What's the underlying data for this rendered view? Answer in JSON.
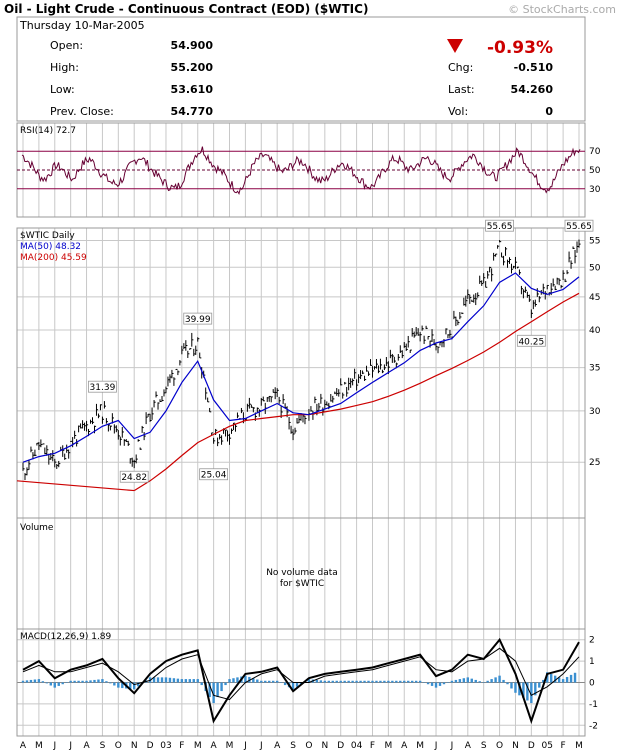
{
  "header": {
    "title": "Oil - Light Crude - Continuous Contract (EOD) ($WTIC)",
    "watermark": "© StockCharts.com",
    "date": "Thursday  10-Mar-2005"
  },
  "quote": {
    "open_label": "Open:",
    "open": "54.900",
    "high_label": "High:",
    "high": "55.200",
    "low_label": "Low:",
    "low": "53.610",
    "prev_label": "Prev. Close:",
    "prev": "54.770",
    "pct_change": "-0.93%",
    "chg_label": "Chg:",
    "chg": "-0.510",
    "last_label": "Last:",
    "last": "54.260",
    "vol_label": "Vol:",
    "vol": "0"
  },
  "colors": {
    "price": "#000000",
    "ma50": "#0000cc",
    "ma200": "#cc0000",
    "rsi": "#660033",
    "macd_hist": "#3a8fd0",
    "down": "#cc0000",
    "grid": "#c8c8c8"
  },
  "panels": {
    "rsi_label": "RSI(14) 72.7",
    "price_label": "$WTIC Daily",
    "ma50_label": "MA(50) 48.32",
    "ma200_label": "MA(200) 45.59",
    "volume_label": "Volume",
    "no_volume_line1": "No volume data",
    "no_volume_line2": "for $WTIC",
    "macd_label": "MACD(12,26,9)  1.89"
  },
  "chart_data": [
    {
      "type": "line",
      "name": "RSI",
      "yticks": [
        "70",
        "50",
        "30"
      ],
      "ylim": [
        0,
        100
      ],
      "latest": 72.7,
      "reference_levels": [
        70,
        50,
        30
      ],
      "values": [
        66,
        60,
        53,
        44,
        40,
        47,
        55,
        52,
        45,
        40,
        50,
        58,
        62,
        55,
        47,
        41,
        36,
        35,
        42,
        53,
        60,
        64,
        58,
        50,
        44,
        38,
        33,
        30,
        34,
        46,
        58,
        68,
        72,
        64,
        55,
        50,
        44,
        36,
        29,
        30,
        42,
        55,
        62,
        66,
        60,
        54,
        48,
        50,
        56,
        60,
        58,
        50,
        42,
        38,
        40,
        48,
        55,
        58,
        52,
        46,
        40,
        34,
        32,
        38,
        48,
        56,
        62,
        60,
        53,
        50,
        55,
        60,
        63,
        58,
        50,
        44,
        42,
        48,
        56,
        62,
        66,
        60,
        52,
        45,
        42,
        48,
        56,
        64,
        70,
        62,
        52,
        42,
        35,
        30,
        34,
        46,
        56,
        63,
        70,
        72
      ]
    },
    {
      "type": "line",
      "name": "$WTIC Daily",
      "yticks": [
        25,
        30,
        35,
        40,
        45,
        50,
        55
      ],
      "ylog": true,
      "ylim": [
        20.5,
        57.5
      ],
      "x_dates": [
        "2002-04",
        "2002-05",
        "2002-06",
        "2002-07",
        "2002-08",
        "2002-09",
        "2002-10",
        "2002-11",
        "2002-12",
        "2003-01",
        "2003-02",
        "2003-03",
        "2003-04",
        "2003-05",
        "2003-06",
        "2003-07",
        "2003-08",
        "2003-09",
        "2003-10",
        "2003-11",
        "2003-12",
        "2004-01",
        "2004-02",
        "2004-03",
        "2004-04",
        "2004-05",
        "2004-06",
        "2004-07",
        "2004-08",
        "2004-09",
        "2004-10",
        "2004-11",
        "2004-12",
        "2005-01",
        "2005-02",
        "2005-03"
      ],
      "price": [
        24.2,
        26.6,
        24.8,
        26.8,
        28.4,
        30.0,
        28.0,
        25.2,
        29.8,
        32.6,
        36.4,
        38.2,
        27.2,
        28.0,
        29.8,
        30.4,
        31.6,
        28.2,
        30.2,
        31.0,
        32.2,
        33.6,
        34.6,
        35.6,
        37.2,
        39.8,
        38.2,
        40.2,
        44.6,
        46.8,
        53.4,
        49.6,
        42.8,
        46.8,
        48.2,
        54.3
      ],
      "ma50": [
        25.0,
        25.5,
        25.8,
        26.5,
        27.4,
        28.4,
        29.0,
        27.2,
        27.8,
        30.0,
        33.2,
        35.8,
        31.2,
        29.0,
        29.2,
        30.0,
        30.8,
        29.8,
        29.6,
        30.2,
        30.8,
        32.0,
        33.2,
        34.4,
        35.6,
        37.2,
        38.2,
        38.8,
        41.2,
        43.6,
        47.4,
        49.0,
        46.4,
        45.4,
        46.2,
        48.32
      ],
      "ma200": [
        null,
        null,
        null,
        null,
        null,
        null,
        null,
        22.6,
        23.4,
        24.4,
        25.6,
        26.8,
        27.6,
        28.4,
        29.0,
        29.2,
        29.4,
        29.6,
        29.6,
        29.9,
        30.2,
        30.6,
        31.0,
        31.6,
        32.3,
        33.1,
        34.0,
        34.9,
        35.9,
        37.0,
        38.3,
        39.8,
        41.2,
        42.7,
        44.2,
        45.59
      ],
      "annotations": [
        {
          "label": "31.39",
          "value": 31.39,
          "x_date": "2002-09"
        },
        {
          "label": "24.82",
          "value": 24.82,
          "x_date": "2002-11"
        },
        {
          "label": "39.99",
          "value": 39.99,
          "x_date": "2003-03"
        },
        {
          "label": "25.04",
          "value": 25.04,
          "x_date": "2003-04"
        },
        {
          "label": "55.65",
          "value": 55.65,
          "x_date": "2004-10"
        },
        {
          "label": "40.25",
          "value": 40.25,
          "x_date": "2004-12"
        },
        {
          "label": "55.65",
          "value": 55.65,
          "x_date": "2005-03"
        }
      ]
    },
    {
      "type": "bar",
      "name": "Volume",
      "note": "No volume data for $WTIC",
      "values": []
    },
    {
      "type": "line",
      "name": "MACD(12,26,9)",
      "yticks": [
        "2",
        "1",
        "0",
        "-1",
        "-2"
      ],
      "ylim": [
        -2.5,
        2.5
      ],
      "latest": 1.89,
      "x_dates": [
        "2002-04",
        "2002-05",
        "2002-06",
        "2002-07",
        "2002-08",
        "2002-09",
        "2002-10",
        "2002-11",
        "2002-12",
        "2003-01",
        "2003-02",
        "2003-03",
        "2003-04",
        "2003-05",
        "2003-06",
        "2003-07",
        "2003-08",
        "2003-09",
        "2003-10",
        "2003-11",
        "2003-12",
        "2004-01",
        "2004-02",
        "2004-03",
        "2004-04",
        "2004-05",
        "2004-06",
        "2004-07",
        "2004-08",
        "2004-09",
        "2004-10",
        "2004-11",
        "2004-12",
        "2005-01",
        "2005-02",
        "2005-03"
      ],
      "macd": [
        0.6,
        1.0,
        0.2,
        0.6,
        0.8,
        1.1,
        0.2,
        -0.5,
        0.4,
        1.0,
        1.3,
        1.5,
        -1.8,
        -0.6,
        0.4,
        0.5,
        0.7,
        -0.4,
        0.2,
        0.4,
        0.5,
        0.6,
        0.7,
        0.9,
        1.1,
        1.3,
        0.3,
        0.6,
        1.3,
        1.1,
        2.0,
        0.4,
        -1.8,
        0.4,
        0.6,
        1.89
      ],
      "signal": [
        0.5,
        0.8,
        0.5,
        0.5,
        0.7,
        0.9,
        0.5,
        -0.1,
        0.1,
        0.7,
        1.1,
        1.3,
        -0.6,
        -0.8,
        0.0,
        0.4,
        0.6,
        0.0,
        0.0,
        0.3,
        0.4,
        0.5,
        0.6,
        0.8,
        1.0,
        1.2,
        0.6,
        0.5,
        1.0,
        1.1,
        1.6,
        1.0,
        -0.6,
        -0.2,
        0.4,
        1.2
      ]
    }
  ],
  "x_axis": {
    "labels": [
      "A",
      "M",
      "J",
      "J",
      "A",
      "S",
      "O",
      "N",
      "D",
      "03",
      "F",
      "M",
      "A",
      "M",
      "J",
      "J",
      "A",
      "S",
      "O",
      "N",
      "D",
      "04",
      "F",
      "M",
      "A",
      "M",
      "J",
      "J",
      "A",
      "S",
      "O",
      "N",
      "D",
      "05",
      "F",
      "M"
    ]
  }
}
